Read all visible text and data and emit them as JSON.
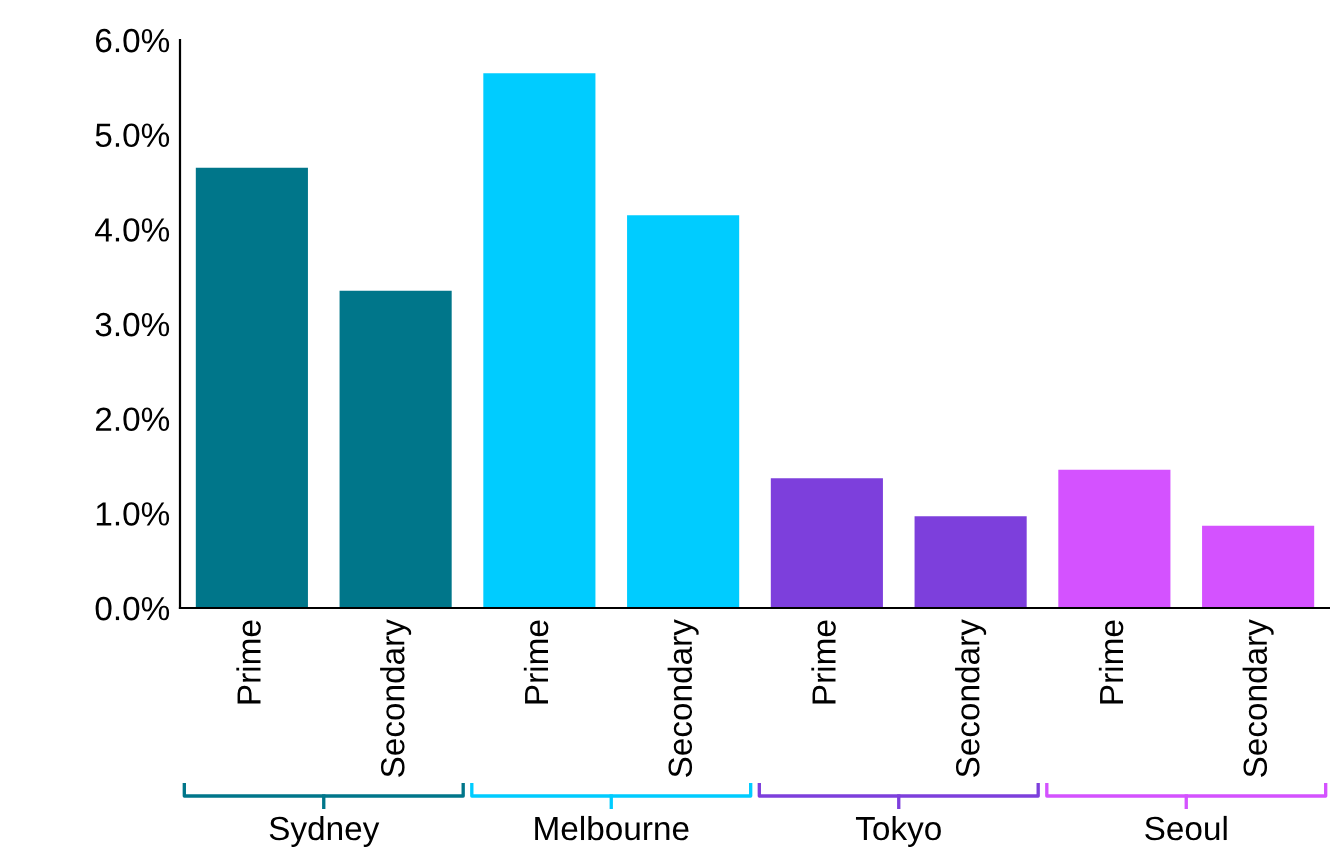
{
  "chart_data": {
    "type": "bar",
    "categories": [
      "Prime",
      "Secondary",
      "Prime",
      "Secondary",
      "Prime",
      "Secondary",
      "Prime",
      "Secondary"
    ],
    "values": [
      4.65,
      3.35,
      5.65,
      4.15,
      1.37,
      0.97,
      1.46,
      0.87
    ],
    "colors": [
      "#00768a",
      "#00768a",
      "#00ccff",
      "#00ccff",
      "#7d3fdc",
      "#7d3fdc",
      "#d452ff",
      "#d452ff"
    ],
    "ylim": [
      0,
      6
    ],
    "yticks": [
      {
        "value": 0,
        "label": "0.0%"
      },
      {
        "value": 1,
        "label": "1.0%"
      },
      {
        "value": 2,
        "label": "2.0%"
      },
      {
        "value": 3,
        "label": "3.0%"
      },
      {
        "value": 4,
        "label": "4.0%"
      },
      {
        "value": 5,
        "label": "5.0%"
      },
      {
        "value": 6,
        "label": "6.0%"
      }
    ],
    "annotations": [
      "Sydney",
      "Melbourne",
      "Tokyo",
      "Seoul"
    ],
    "grid": false,
    "legend": false
  }
}
